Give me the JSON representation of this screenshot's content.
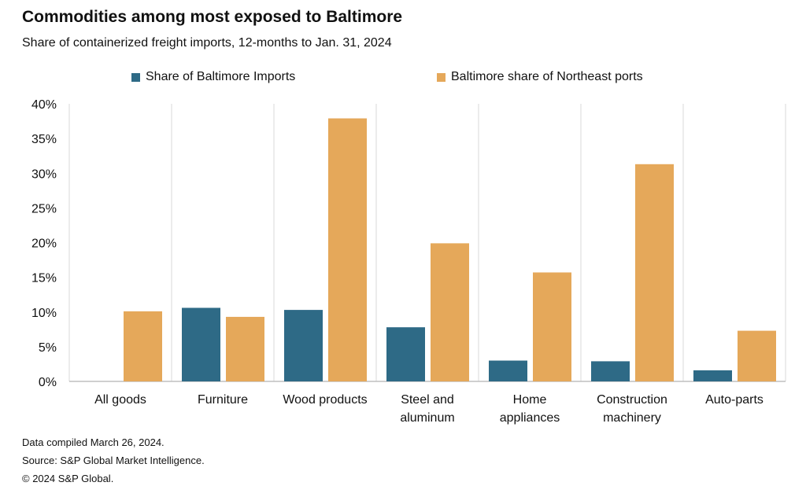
{
  "chart_data": {
    "type": "bar",
    "title": "Commodities among most exposed to Baltimore",
    "subtitle": "Share of containerized  freight imports, 12-months to Jan. 31, 2024",
    "categories": [
      [
        "All goods"
      ],
      [
        "Furniture"
      ],
      [
        "Wood products"
      ],
      [
        "Steel and",
        "aluminum"
      ],
      [
        "Home",
        "appliances"
      ],
      [
        "Construction",
        "machinery"
      ],
      [
        "Auto-parts"
      ]
    ],
    "series": [
      {
        "name": "Share of Baltimore Imports",
        "color": "#2e6a86",
        "values": [
          null,
          10.6,
          10.3,
          7.8,
          3.0,
          2.9,
          1.6
        ]
      },
      {
        "name": "Baltimore share of Northeast ports",
        "color": "#e5a85a",
        "values": [
          10.1,
          9.3,
          37.9,
          19.9,
          15.7,
          31.3,
          7.3
        ]
      }
    ],
    "ylim": [
      0,
      40
    ],
    "yticks": [
      "0%",
      "5%",
      "10%",
      "15%",
      "20%",
      "25%",
      "30%",
      "35%",
      "40%"
    ],
    "legend": "top",
    "grid": "vertical category separators"
  },
  "footer": {
    "line1": "Data compiled March 26, 2024.",
    "line2": "Source: S&P Global Market Intelligence.",
    "line3": "© 2024 S&P Global."
  }
}
